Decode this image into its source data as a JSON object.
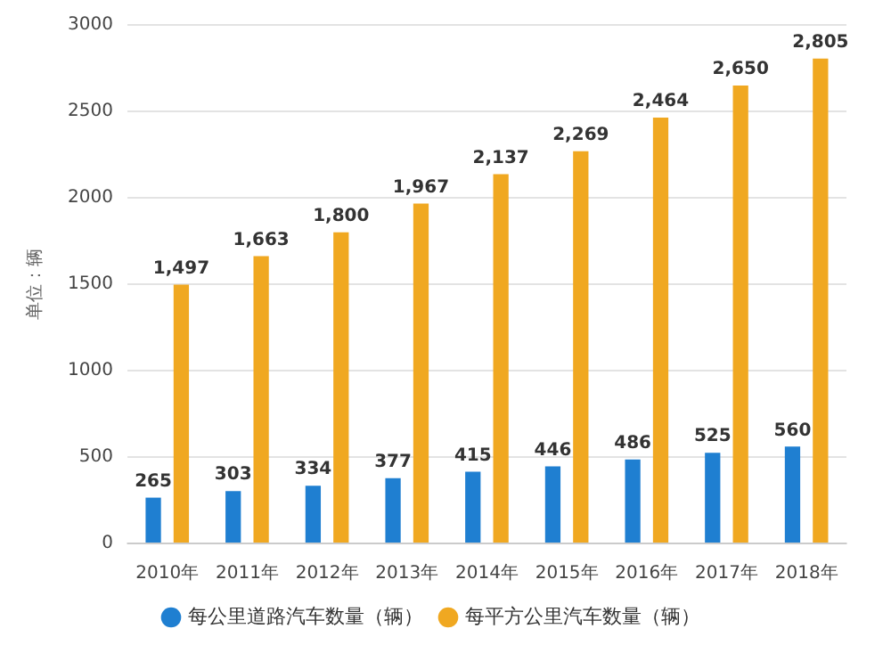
{
  "chart_data": {
    "type": "bar",
    "ylabel": "单位：辆",
    "categories": [
      "2010年",
      "2011年",
      "2012年",
      "2013年",
      "2014年",
      "2015年",
      "2016年",
      "2017年",
      "2018年"
    ],
    "series": [
      {
        "name": "每公里道路汽车数量（辆）",
        "color": "#1f7fd1",
        "values": [
          265,
          303,
          334,
          377,
          415,
          446,
          486,
          525,
          560
        ],
        "value_labels": [
          "265",
          "303",
          "334",
          "377",
          "415",
          "446",
          "486",
          "525",
          "560"
        ]
      },
      {
        "name": "每平方公里汽车数量（辆）",
        "color": "#f0a821",
        "values": [
          1497,
          1663,
          1800,
          1967,
          2137,
          2269,
          2464,
          2650,
          2805
        ],
        "value_labels": [
          "1,497",
          "1,663",
          "1,800",
          "1,967",
          "2,137",
          "2,269",
          "2,464",
          "2,650",
          "2,805"
        ]
      }
    ],
    "ylim": [
      0,
      3000
    ],
    "yticks": [
      0,
      500,
      1000,
      1500,
      2000,
      2500,
      3000
    ],
    "grid": "y",
    "legend": "bottom"
  }
}
